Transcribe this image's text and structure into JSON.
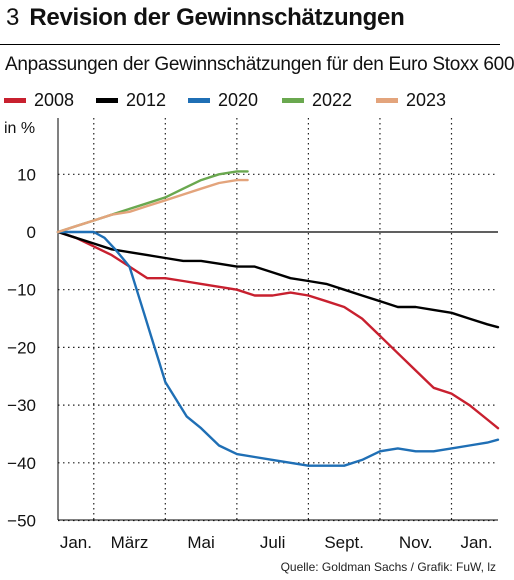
{
  "header": {
    "number": "3",
    "title": "Revision der Gewinnschätzungen",
    "subtitle": "Anpassungen der Gewinnschätzungen für den Euro Stoxx 600"
  },
  "unit_label": "in %",
  "source": "Quelle: Goldman Sachs / Grafik: FuW, lz",
  "chart_data": {
    "type": "line",
    "title": "Revision der Gewinnschätzungen",
    "subtitle": "Anpassungen der Gewinnschätzungen für den Euro Stoxx 600",
    "ylabel": "in %",
    "xlabel": "",
    "x_ticks": [
      "Jan.",
      "März",
      "Mai",
      "Juli",
      "Sept.",
      "Nov.",
      "Jan."
    ],
    "y_ticks": [
      10,
      0,
      -10,
      -20,
      -30,
      -40,
      -50
    ],
    "xlim": [
      0,
      12.3
    ],
    "ylim": [
      -50,
      15
    ],
    "grid": "dotted",
    "legend_position": "top",
    "series": [
      {
        "name": "2008",
        "color": "#c8202f",
        "points": [
          [
            0,
            0
          ],
          [
            0.5,
            -1
          ],
          [
            1,
            -2.5
          ],
          [
            1.5,
            -4
          ],
          [
            2,
            -6
          ],
          [
            2.5,
            -8
          ],
          [
            3,
            -8
          ],
          [
            3.5,
            -8.5
          ],
          [
            4,
            -9
          ],
          [
            4.5,
            -9.5
          ],
          [
            5,
            -10
          ],
          [
            5.5,
            -11
          ],
          [
            6,
            -11
          ],
          [
            6.5,
            -10.5
          ],
          [
            7,
            -11
          ],
          [
            7.5,
            -12
          ],
          [
            8,
            -13
          ],
          [
            8.5,
            -15
          ],
          [
            9,
            -18
          ],
          [
            9.5,
            -21
          ],
          [
            10,
            -24
          ],
          [
            10.5,
            -27
          ],
          [
            11,
            -28
          ],
          [
            11.5,
            -30
          ],
          [
            12,
            -32.5
          ],
          [
            12.3,
            -34
          ]
        ]
      },
      {
        "name": "2012",
        "color": "#000000",
        "points": [
          [
            0,
            0
          ],
          [
            0.5,
            -1
          ],
          [
            1,
            -2
          ],
          [
            1.5,
            -3
          ],
          [
            2,
            -3.5
          ],
          [
            2.5,
            -4
          ],
          [
            3,
            -4.5
          ],
          [
            3.5,
            -5
          ],
          [
            4,
            -5
          ],
          [
            4.5,
            -5.5
          ],
          [
            5,
            -6
          ],
          [
            5.5,
            -6
          ],
          [
            6,
            -7
          ],
          [
            6.5,
            -8
          ],
          [
            7,
            -8.5
          ],
          [
            7.5,
            -9
          ],
          [
            8,
            -10
          ],
          [
            8.5,
            -11
          ],
          [
            9,
            -12
          ],
          [
            9.5,
            -13
          ],
          [
            10,
            -13
          ],
          [
            10.5,
            -13.5
          ],
          [
            11,
            -14
          ],
          [
            11.5,
            -15
          ],
          [
            12,
            -16
          ],
          [
            12.3,
            -16.5
          ]
        ]
      },
      {
        "name": "2020",
        "color": "#1f6fb5",
        "points": [
          [
            0,
            0
          ],
          [
            0.5,
            0
          ],
          [
            1,
            0
          ],
          [
            1.3,
            -1
          ],
          [
            1.6,
            -3
          ],
          [
            2,
            -6
          ],
          [
            2.2,
            -10
          ],
          [
            2.4,
            -14
          ],
          [
            2.6,
            -18
          ],
          [
            2.8,
            -22
          ],
          [
            3,
            -26
          ],
          [
            3.3,
            -29
          ],
          [
            3.6,
            -32
          ],
          [
            4,
            -34
          ],
          [
            4.5,
            -37
          ],
          [
            5,
            -38.5
          ],
          [
            5.5,
            -39
          ],
          [
            6,
            -39.5
          ],
          [
            6.5,
            -40
          ],
          [
            7,
            -40.5
          ],
          [
            7.5,
            -40.5
          ],
          [
            8,
            -40.5
          ],
          [
            8.5,
            -39.5
          ],
          [
            9,
            -38
          ],
          [
            9.5,
            -37.5
          ],
          [
            10,
            -38
          ],
          [
            10.5,
            -38
          ],
          [
            11,
            -37.5
          ],
          [
            11.5,
            -37
          ],
          [
            12,
            -36.5
          ],
          [
            12.3,
            -36
          ]
        ]
      },
      {
        "name": "2022",
        "color": "#6aa84f",
        "points": [
          [
            0,
            0
          ],
          [
            0.5,
            1
          ],
          [
            1,
            2
          ],
          [
            1.5,
            3
          ],
          [
            2,
            4
          ],
          [
            2.5,
            5
          ],
          [
            3,
            6
          ],
          [
            3.5,
            7.5
          ],
          [
            4,
            9
          ],
          [
            4.5,
            10
          ],
          [
            5,
            10.5
          ],
          [
            5.3,
            10.5
          ]
        ]
      },
      {
        "name": "2023",
        "color": "#e3a47c",
        "points": [
          [
            0,
            0
          ],
          [
            0.5,
            1
          ],
          [
            1,
            2
          ],
          [
            1.5,
            3
          ],
          [
            2,
            3.5
          ],
          [
            2.5,
            4.5
          ],
          [
            3,
            5.5
          ],
          [
            3.5,
            6.5
          ],
          [
            4,
            7.5
          ],
          [
            4.5,
            8.5
          ],
          [
            5,
            9
          ],
          [
            5.3,
            9
          ]
        ]
      }
    ]
  }
}
